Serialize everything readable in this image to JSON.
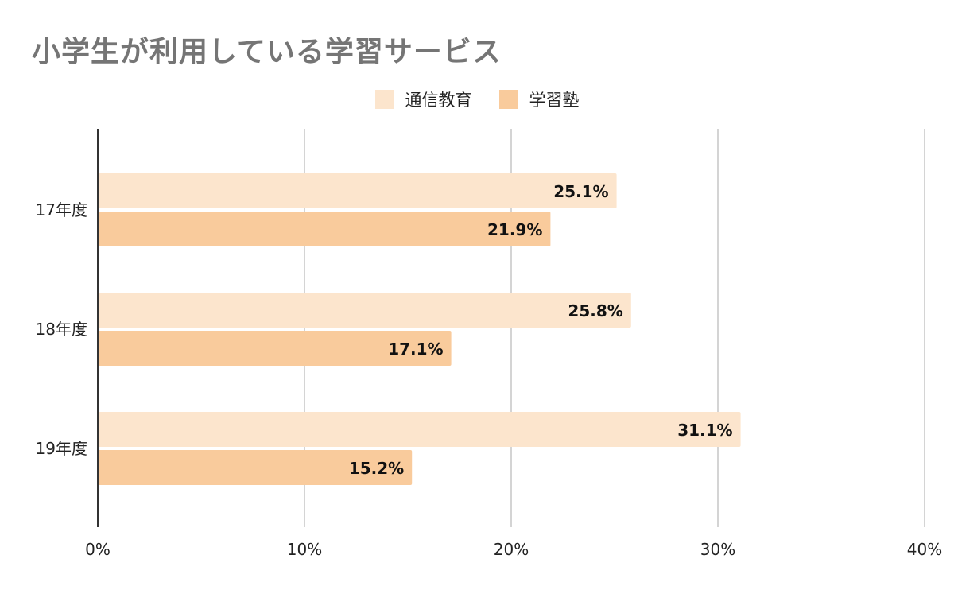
{
  "chart_data": {
    "type": "bar",
    "orientation": "horizontal",
    "title": "小学生が利用している学習サービス",
    "categories": [
      "17年度",
      "18年度",
      "19年度"
    ],
    "series": [
      {
        "name": "通信教育",
        "values": [
          25.1,
          25.8,
          31.1
        ],
        "color": "#fce5cd",
        "data_labels": [
          "25.1%",
          "25.8%",
          "31.1%"
        ]
      },
      {
        "name": "学習塾",
        "values": [
          21.9,
          17.1,
          15.2
        ],
        "color": "#f9cb9c",
        "data_labels": [
          "21.9%",
          "17.1%",
          "15.2%"
        ]
      }
    ],
    "xlim": [
      0,
      40
    ],
    "x_ticks": [
      0,
      10,
      20,
      30,
      40
    ],
    "x_tick_labels": [
      "0%",
      "10%",
      "20%",
      "30%",
      "40%"
    ],
    "grid": true,
    "legend_position": "top-center",
    "title_color": "#757575"
  }
}
